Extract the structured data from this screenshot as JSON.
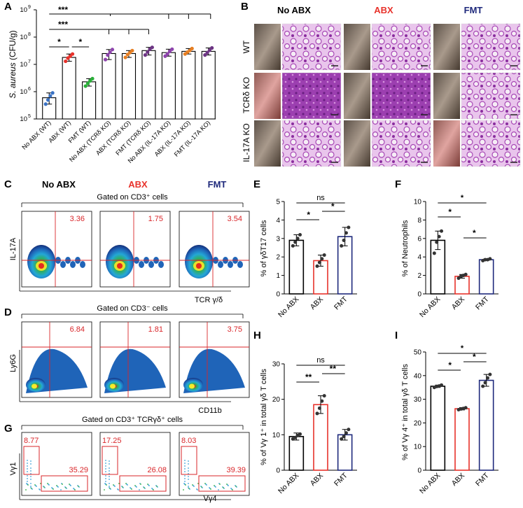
{
  "panels": {
    "A": {
      "letter": "A",
      "ylabel_italic": "S. aureus",
      "ylabel_unit": " (CFU/g)",
      "yticks": [
        "10",
        "10",
        "10",
        "10",
        "10"
      ],
      "yexp": [
        "5",
        "6",
        "7",
        "8",
        "9"
      ],
      "sig": [
        "***",
        "***",
        "*",
        "*"
      ]
    },
    "B": {
      "letter": "B",
      "col_headers": [
        "No ABX",
        "ABX",
        "FMT"
      ],
      "row_labels": [
        "WT",
        "TCRδ KO",
        "IL-17A KO"
      ]
    },
    "C": {
      "letter": "C",
      "headers": [
        "No ABX",
        "ABX",
        "FMT"
      ],
      "gate": "Gated on CD3⁺ cells",
      "values": [
        "3.36",
        "1.75",
        "3.54"
      ],
      "ylabel": "IL-17A",
      "xlabel": "TCR γ/δ"
    },
    "D": {
      "letter": "D",
      "gate": "Gated on CD3⁻ cells",
      "values": [
        "6.84",
        "1.81",
        "3.75"
      ],
      "ylabel": "Ly6G",
      "xlabel": "CD11b"
    },
    "G": {
      "letter": "G",
      "gate": "Gated on CD3⁺ TCRγδ⁺ cells",
      "values_vg1": [
        "8.77",
        "17.25",
        "8.03"
      ],
      "values_vg4": [
        "35.29",
        "26.08",
        "39.39"
      ],
      "ylabel": "Vγ1",
      "xlabel": "Vγ4"
    },
    "E": {
      "letter": "E",
      "ylabel": "% of γδT17 cells",
      "sig": [
        "ns",
        "*",
        "*"
      ]
    },
    "F": {
      "letter": "F",
      "ylabel": "% of Neutrophils",
      "sig": [
        "*",
        "*",
        "*"
      ]
    },
    "H": {
      "letter": "H",
      "ylabel": "% of Vγ 1⁺ in total γδ T cells",
      "sig": [
        "ns",
        "**",
        "**"
      ]
    },
    "I": {
      "letter": "I",
      "ylabel": "% of Vγ 4⁺ in total γδ T cells",
      "sig": [
        "*",
        "*",
        "*"
      ]
    }
  },
  "colors": {
    "noabx": "#000000",
    "abx": "#e8322b",
    "fmt": "#1f2a7c",
    "abx_dot": "#e8322b",
    "fmt_dot": "#2bb03a",
    "histo": "#b04fb8"
  },
  "chart_data": [
    {
      "id": "A",
      "type": "bar",
      "yscale": "log",
      "ylim": [
        100000,
        1000000000
      ],
      "categories": [
        "No ABX (WT)",
        "ABX (WT)",
        "FMT (WT)",
        "No ABX (TCRδ KO)",
        "ABX (TCRδ KO)",
        "FMT (TCRδ KO)",
        "No ABX (IL-17A KO)",
        "ABX (IL-17A KO)",
        "FMT (IL-17A KO)"
      ],
      "values": [
        600000,
        18000000,
        2300000,
        25000000,
        25000000,
        32000000,
        27000000,
        30000000,
        30000000
      ],
      "points": [
        [
          350000,
          500000,
          700000,
          900000
        ],
        [
          13000000,
          17000000,
          20000000,
          24000000
        ],
        [
          1600000,
          2000000,
          2500000,
          3000000
        ],
        [
          15000000,
          22000000,
          28000000,
          35000000
        ],
        [
          18000000,
          23000000,
          27000000,
          32000000
        ],
        [
          22000000,
          28000000,
          36000000,
          42000000
        ],
        [
          20000000,
          24000000,
          30000000,
          36000000
        ],
        [
          24000000,
          28000000,
          32000000,
          38000000
        ],
        [
          22000000,
          27000000,
          33000000,
          40000000
        ]
      ]
    },
    {
      "id": "E",
      "type": "bar",
      "ylim": [
        0,
        5
      ],
      "yticks": [
        0,
        1,
        2,
        3,
        4,
        5
      ],
      "categories": [
        "No ABX",
        "ABX",
        "FMT"
      ],
      "values": [
        2.9,
        1.8,
        3.1
      ],
      "errors": [
        0.3,
        0.3,
        0.5
      ],
      "points": [
        [
          2.6,
          2.8,
          3.0,
          3.2
        ],
        [
          1.5,
          1.7,
          1.9,
          2.1
        ],
        [
          2.6,
          2.9,
          3.3,
          3.6
        ]
      ]
    },
    {
      "id": "F",
      "type": "bar",
      "ylim": [
        0,
        10
      ],
      "yticks": [
        0,
        2,
        4,
        6,
        8,
        10
      ],
      "categories": [
        "No ABX",
        "ABX",
        "FMT"
      ],
      "values": [
        5.8,
        1.9,
        3.7
      ],
      "errors": [
        1.0,
        0.2,
        0.1
      ],
      "points": [
        [
          4.4,
          5.6,
          6.2,
          6.8
        ],
        [
          1.7,
          1.9,
          2.0,
          2.1
        ],
        [
          3.6,
          3.7,
          3.7,
          3.8
        ]
      ]
    },
    {
      "id": "H",
      "type": "bar",
      "ylim": [
        0,
        30
      ],
      "yticks": [
        0,
        10,
        20,
        30
      ],
      "categories": [
        "No ABX",
        "ABX",
        "FMT"
      ],
      "values": [
        9.5,
        18.5,
        10.0
      ],
      "errors": [
        1.0,
        2.5,
        1.5
      ],
      "points": [
        [
          8.8,
          9.2,
          9.8,
          10.2
        ],
        [
          16.0,
          17.5,
          19.5,
          21.0
        ],
        [
          8.8,
          9.5,
          10.5,
          11.5
        ]
      ]
    },
    {
      "id": "I",
      "type": "bar",
      "ylim": [
        0,
        50
      ],
      "yticks": [
        0,
        10,
        20,
        30,
        40,
        50
      ],
      "categories": [
        "No ABX",
        "ABX",
        "FMT"
      ],
      "values": [
        35.5,
        26.0,
        38.0
      ],
      "errors": [
        0.5,
        0.5,
        2.5
      ],
      "points": [
        [
          35.0,
          35.4,
          35.6,
          36.0
        ],
        [
          25.6,
          25.9,
          26.1,
          26.4
        ],
        [
          35.5,
          37.0,
          39.0,
          40.5
        ]
      ]
    }
  ]
}
